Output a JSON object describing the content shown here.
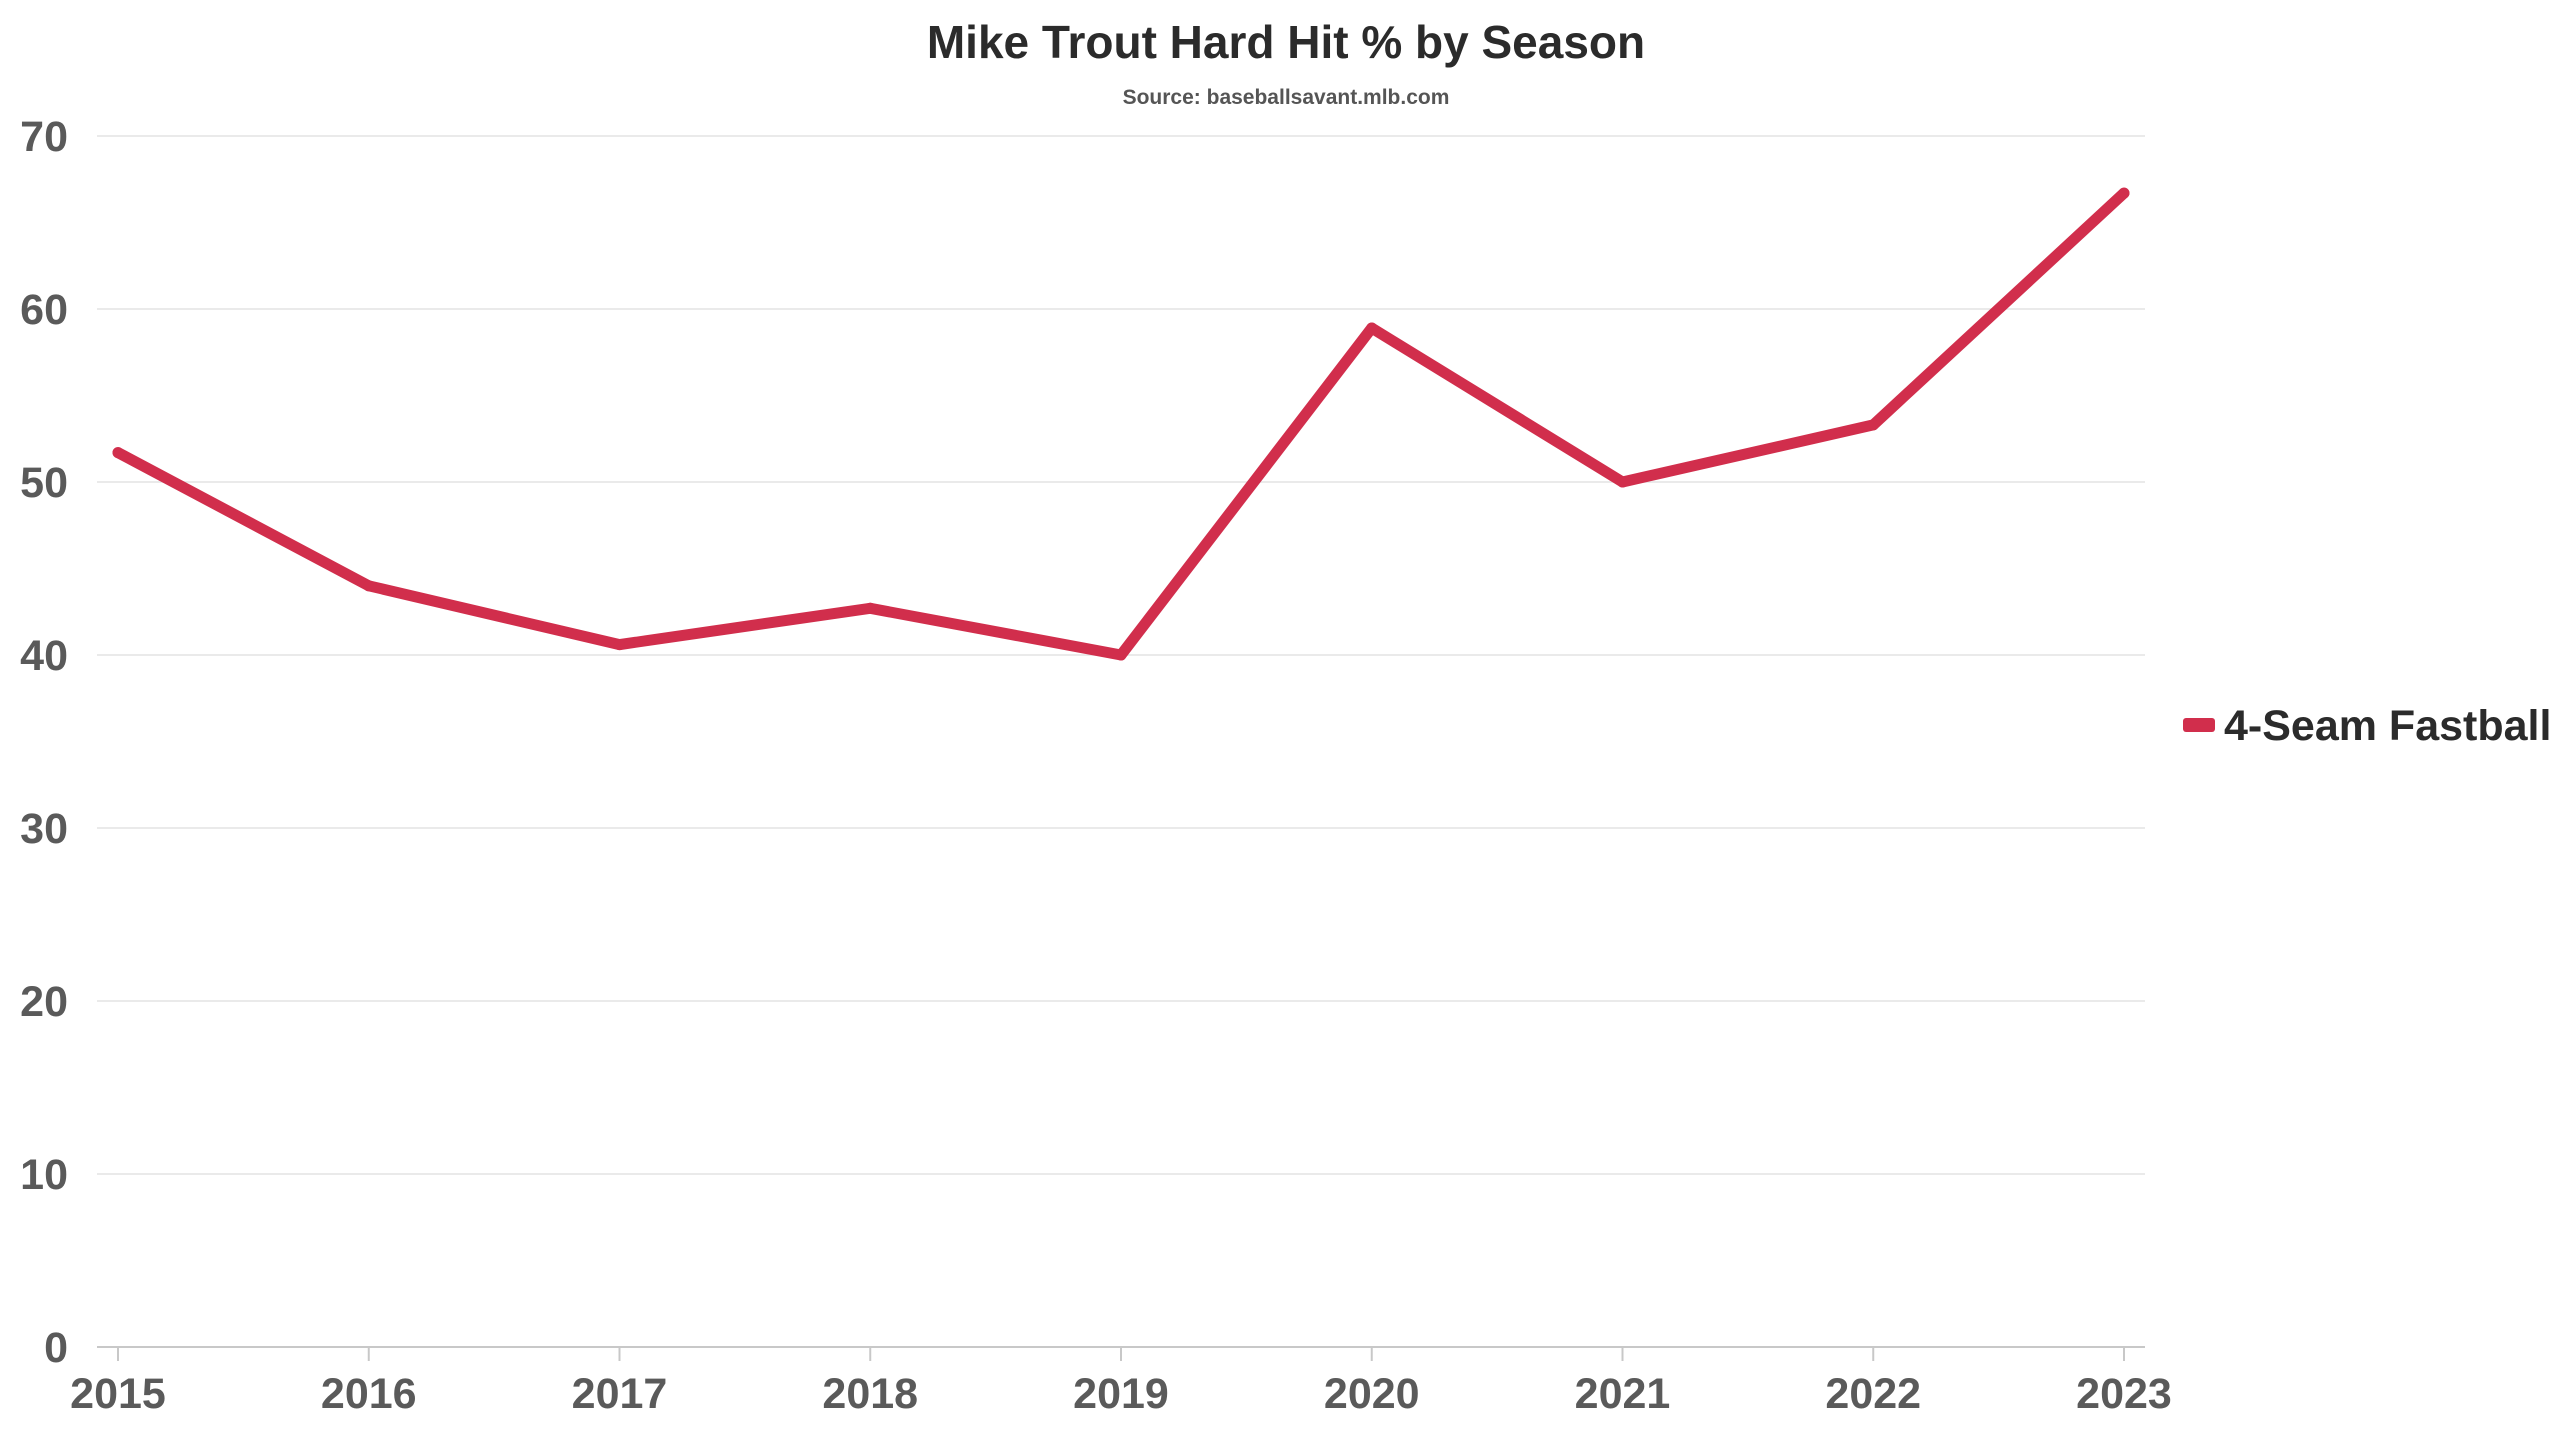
{
  "chart_data": {
    "type": "line",
    "title": "Mike Trout Hard Hit % by Season",
    "subtitle": "Source: baseballsavant.mlb.com",
    "x": [
      2015,
      2016,
      2017,
      2018,
      2019,
      2020,
      2021,
      2022,
      2023
    ],
    "x_tick_labels": [
      "2015",
      "2016",
      "2017",
      "2018",
      "2019",
      "2020",
      "2021",
      "2022",
      "2023"
    ],
    "y_ticks": [
      0,
      10,
      20,
      30,
      40,
      50,
      60,
      70
    ],
    "y_tick_labels": [
      "0",
      "10",
      "20",
      "30",
      "40",
      "50",
      "60",
      "70"
    ],
    "ylim": [
      0,
      70
    ],
    "grid": true,
    "legend_position": "right",
    "series": [
      {
        "name": "4-Seam Fastball",
        "color": "#d12e4c",
        "values": [
          51.7,
          44.0,
          40.6,
          42.7,
          40.0,
          58.9,
          50.0,
          53.3,
          66.7
        ]
      }
    ]
  }
}
